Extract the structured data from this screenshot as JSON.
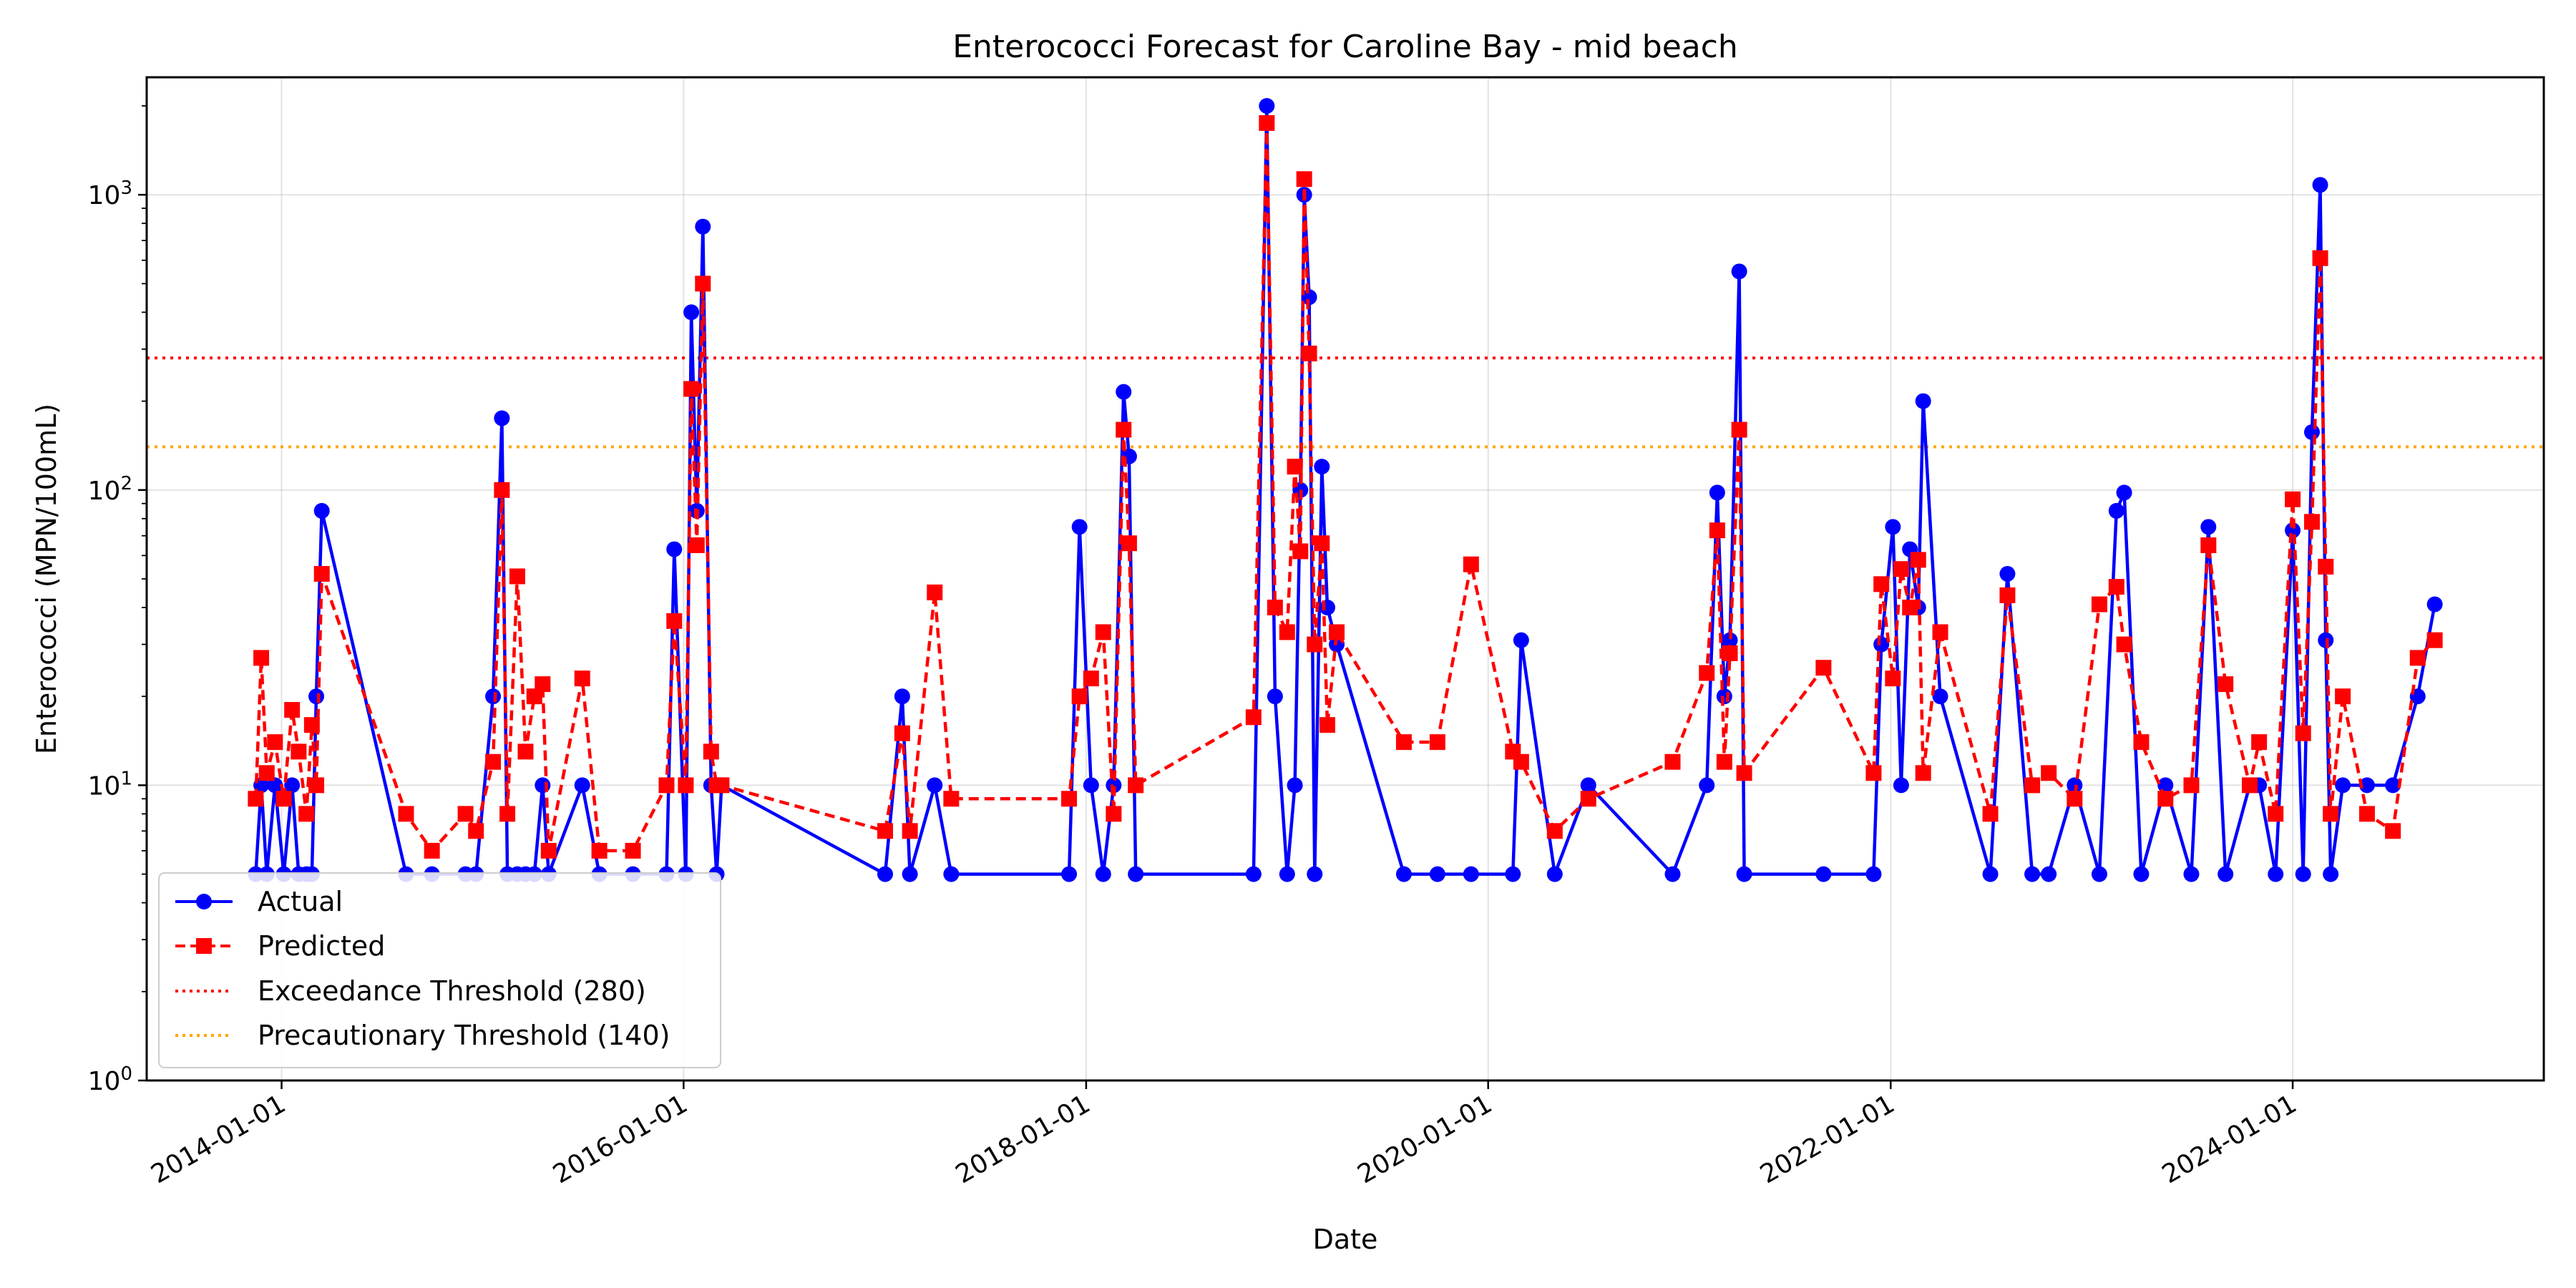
{
  "chart_data": {
    "type": "line",
    "title": "Enterococci Forecast for Caroline Bay - mid beach",
    "xlabel": "Date",
    "ylabel": "Enterococci (MPN/100mL)",
    "x_scale": "time",
    "y_scale": "log",
    "xlim": [
      "2013-05-01",
      "2025-04-01"
    ],
    "ylim": [
      1,
      2500
    ],
    "x_ticks": [
      "2014-01-01",
      "2016-01-01",
      "2018-01-01",
      "2020-01-01",
      "2022-01-01",
      "2024-01-01"
    ],
    "y_ticks": [
      1,
      10,
      100,
      1000
    ],
    "y_tick_labels": [
      "10^0",
      "10^1",
      "10^2",
      "10^3"
    ],
    "grid": true,
    "legend_position": "lower-left",
    "series": [
      {
        "name": "Actual",
        "color": "#0000ff",
        "marker": "circle",
        "line": "solid",
        "points": [
          [
            "2013-11-15",
            5
          ],
          [
            "2013-11-25",
            10
          ],
          [
            "2013-12-05",
            5
          ],
          [
            "2013-12-20",
            10
          ],
          [
            "2014-01-05",
            5
          ],
          [
            "2014-01-20",
            10
          ],
          [
            "2014-02-01",
            5
          ],
          [
            "2014-02-15",
            5
          ],
          [
            "2014-02-25",
            5
          ],
          [
            "2014-03-05",
            20
          ],
          [
            "2014-03-15",
            85
          ],
          [
            "2014-08-15",
            5
          ],
          [
            "2014-10-01",
            5
          ],
          [
            "2014-12-01",
            5
          ],
          [
            "2014-12-20",
            5
          ],
          [
            "2015-01-20",
            20
          ],
          [
            "2015-02-05",
            175
          ],
          [
            "2015-02-15",
            5
          ],
          [
            "2015-03-05",
            5
          ],
          [
            "2015-03-20",
            5
          ],
          [
            "2015-04-05",
            5
          ],
          [
            "2015-04-20",
            10
          ],
          [
            "2015-05-01",
            5
          ],
          [
            "2015-07-01",
            10
          ],
          [
            "2015-08-01",
            5
          ],
          [
            "2015-10-01",
            5
          ],
          [
            "2015-12-01",
            5
          ],
          [
            "2015-12-15",
            63
          ],
          [
            "2016-01-05",
            5
          ],
          [
            "2016-01-15",
            400
          ],
          [
            "2016-01-25",
            85
          ],
          [
            "2016-02-05",
            780
          ],
          [
            "2016-02-20",
            10
          ],
          [
            "2016-03-01",
            5
          ],
          [
            "2016-03-10",
            10
          ],
          [
            "2017-01-01",
            5
          ],
          [
            "2017-02-01",
            20
          ],
          [
            "2017-02-15",
            5
          ],
          [
            "2017-04-01",
            10
          ],
          [
            "2017-05-01",
            5
          ],
          [
            "2017-12-01",
            5
          ],
          [
            "2017-12-20",
            75
          ],
          [
            "2018-01-10",
            10
          ],
          [
            "2018-02-01",
            5
          ],
          [
            "2018-02-20",
            10
          ],
          [
            "2018-03-10",
            215
          ],
          [
            "2018-03-20",
            130
          ],
          [
            "2018-04-01",
            5
          ],
          [
            "2018-11-01",
            5
          ],
          [
            "2018-11-25",
            2000
          ],
          [
            "2018-12-10",
            20
          ],
          [
            "2019-01-01",
            5
          ],
          [
            "2019-01-15",
            10
          ],
          [
            "2019-01-25",
            100
          ],
          [
            "2019-02-01",
            1000
          ],
          [
            "2019-02-10",
            450
          ],
          [
            "2019-02-20",
            5
          ],
          [
            "2019-03-05",
            120
          ],
          [
            "2019-03-15",
            40
          ],
          [
            "2019-04-01",
            30
          ],
          [
            "2019-08-01",
            5
          ],
          [
            "2019-10-01",
            5
          ],
          [
            "2019-12-01",
            5
          ],
          [
            "2020-02-15",
            5
          ],
          [
            "2020-03-01",
            31
          ],
          [
            "2020-05-01",
            5
          ],
          [
            "2020-07-01",
            10
          ],
          [
            "2020-12-01",
            5
          ],
          [
            "2021-02-01",
            10
          ],
          [
            "2021-02-20",
            98
          ],
          [
            "2021-03-05",
            20
          ],
          [
            "2021-03-15",
            31
          ],
          [
            "2021-04-01",
            550
          ],
          [
            "2021-04-10",
            5
          ],
          [
            "2021-09-01",
            5
          ],
          [
            "2021-12-01",
            5
          ],
          [
            "2021-12-15",
            30
          ],
          [
            "2022-01-05",
            75
          ],
          [
            "2022-01-20",
            10
          ],
          [
            "2022-02-05",
            63
          ],
          [
            "2022-02-20",
            40
          ],
          [
            "2022-03-01",
            200
          ],
          [
            "2022-04-01",
            20
          ],
          [
            "2022-07-01",
            5
          ],
          [
            "2022-08-01",
            52
          ],
          [
            "2022-09-15",
            5
          ],
          [
            "2022-10-15",
            5
          ],
          [
            "2022-12-01",
            10
          ],
          [
            "2023-01-15",
            5
          ],
          [
            "2023-02-15",
            85
          ],
          [
            "2023-03-01",
            98
          ],
          [
            "2023-04-01",
            5
          ],
          [
            "2023-05-15",
            10
          ],
          [
            "2023-07-01",
            5
          ],
          [
            "2023-08-01",
            75
          ],
          [
            "2023-09-01",
            5
          ],
          [
            "2023-10-15",
            10
          ],
          [
            "2023-11-01",
            10
          ],
          [
            "2023-12-01",
            5
          ],
          [
            "2024-01-01",
            73
          ],
          [
            "2024-01-20",
            5
          ],
          [
            "2024-02-05",
            157
          ],
          [
            "2024-02-20",
            1080
          ],
          [
            "2024-03-01",
            31
          ],
          [
            "2024-03-10",
            5
          ],
          [
            "2024-04-01",
            10
          ],
          [
            "2024-05-15",
            10
          ],
          [
            "2024-07-01",
            10
          ],
          [
            "2024-08-15",
            20
          ],
          [
            "2024-09-15",
            41
          ]
        ]
      },
      {
        "name": "Predicted",
        "color": "#ff0000",
        "marker": "square",
        "line": "dashed",
        "points": [
          [
            "2013-11-15",
            9
          ],
          [
            "2013-11-25",
            27
          ],
          [
            "2013-12-05",
            11
          ],
          [
            "2013-12-20",
            14
          ],
          [
            "2014-01-05",
            9
          ],
          [
            "2014-01-20",
            18
          ],
          [
            "2014-02-01",
            13
          ],
          [
            "2014-02-15",
            8
          ],
          [
            "2014-02-25",
            16
          ],
          [
            "2014-03-05",
            10
          ],
          [
            "2014-03-15",
            52
          ],
          [
            "2014-08-15",
            8
          ],
          [
            "2014-10-01",
            6
          ],
          [
            "2014-12-01",
            8
          ],
          [
            "2014-12-20",
            7
          ],
          [
            "2015-01-20",
            12
          ],
          [
            "2015-02-05",
            100
          ],
          [
            "2015-02-15",
            8
          ],
          [
            "2015-03-05",
            51
          ],
          [
            "2015-03-20",
            13
          ],
          [
            "2015-04-05",
            20
          ],
          [
            "2015-04-20",
            22
          ],
          [
            "2015-05-01",
            6
          ],
          [
            "2015-07-01",
            23
          ],
          [
            "2015-08-01",
            6
          ],
          [
            "2015-10-01",
            6
          ],
          [
            "2015-12-01",
            10
          ],
          [
            "2015-12-15",
            36
          ],
          [
            "2016-01-05",
            10
          ],
          [
            "2016-01-15",
            220
          ],
          [
            "2016-01-25",
            65
          ],
          [
            "2016-02-05",
            500
          ],
          [
            "2016-02-20",
            13
          ],
          [
            "2016-03-01",
            10
          ],
          [
            "2016-03-10",
            10
          ],
          [
            "2017-01-01",
            7
          ],
          [
            "2017-02-01",
            15
          ],
          [
            "2017-02-15",
            7
          ],
          [
            "2017-04-01",
            45
          ],
          [
            "2017-05-01",
            9
          ],
          [
            "2017-12-01",
            9
          ],
          [
            "2017-12-20",
            20
          ],
          [
            "2018-01-10",
            23
          ],
          [
            "2018-02-01",
            33
          ],
          [
            "2018-02-20",
            8
          ],
          [
            "2018-03-10",
            160
          ],
          [
            "2018-03-20",
            66
          ],
          [
            "2018-04-01",
            10
          ],
          [
            "2018-11-01",
            17
          ],
          [
            "2018-11-25",
            1750
          ],
          [
            "2018-12-10",
            40
          ],
          [
            "2019-01-01",
            33
          ],
          [
            "2019-01-15",
            120
          ],
          [
            "2019-01-25",
            62
          ],
          [
            "2019-02-01",
            1130
          ],
          [
            "2019-02-10",
            290
          ],
          [
            "2019-02-20",
            30
          ],
          [
            "2019-03-05",
            66
          ],
          [
            "2019-03-15",
            16
          ],
          [
            "2019-04-01",
            33
          ],
          [
            "2019-08-01",
            14
          ],
          [
            "2019-10-01",
            14
          ],
          [
            "2019-12-01",
            56
          ],
          [
            "2020-02-15",
            13
          ],
          [
            "2020-03-01",
            12
          ],
          [
            "2020-05-01",
            7
          ],
          [
            "2020-07-01",
            9
          ],
          [
            "2020-12-01",
            12
          ],
          [
            "2021-02-01",
            24
          ],
          [
            "2021-02-20",
            73
          ],
          [
            "2021-03-05",
            12
          ],
          [
            "2021-03-15",
            28
          ],
          [
            "2021-04-01",
            160
          ],
          [
            "2021-04-10",
            11
          ],
          [
            "2021-09-01",
            25
          ],
          [
            "2021-12-01",
            11
          ],
          [
            "2021-12-15",
            48
          ],
          [
            "2022-01-05",
            23
          ],
          [
            "2022-01-20",
            54
          ],
          [
            "2022-02-05",
            40
          ],
          [
            "2022-02-20",
            58
          ],
          [
            "2022-03-01",
            11
          ],
          [
            "2022-04-01",
            33
          ],
          [
            "2022-07-01",
            8
          ],
          [
            "2022-08-01",
            44
          ],
          [
            "2022-09-15",
            10
          ],
          [
            "2022-10-15",
            11
          ],
          [
            "2022-12-01",
            9
          ],
          [
            "2023-01-15",
            41
          ],
          [
            "2023-02-15",
            47
          ],
          [
            "2023-03-01",
            30
          ],
          [
            "2023-04-01",
            14
          ],
          [
            "2023-05-15",
            9
          ],
          [
            "2023-07-01",
            10
          ],
          [
            "2023-08-01",
            65
          ],
          [
            "2023-09-01",
            22
          ],
          [
            "2023-10-15",
            10
          ],
          [
            "2023-11-01",
            14
          ],
          [
            "2023-12-01",
            8
          ],
          [
            "2024-01-01",
            93
          ],
          [
            "2024-01-20",
            15
          ],
          [
            "2024-02-05",
            78
          ],
          [
            "2024-02-20",
            610
          ],
          [
            "2024-03-01",
            55
          ],
          [
            "2024-03-10",
            8
          ],
          [
            "2024-04-01",
            20
          ],
          [
            "2024-05-15",
            8
          ],
          [
            "2024-07-01",
            7
          ],
          [
            "2024-08-15",
            27
          ],
          [
            "2024-09-15",
            31
          ]
        ]
      }
    ],
    "thresholds": [
      {
        "name": "Exceedance Threshold (280)",
        "value": 280,
        "color": "#ff0000",
        "line": "dotted"
      },
      {
        "name": "Precautionary Threshold (140)",
        "value": 140,
        "color": "#ffa500",
        "line": "dotted"
      }
    ]
  }
}
